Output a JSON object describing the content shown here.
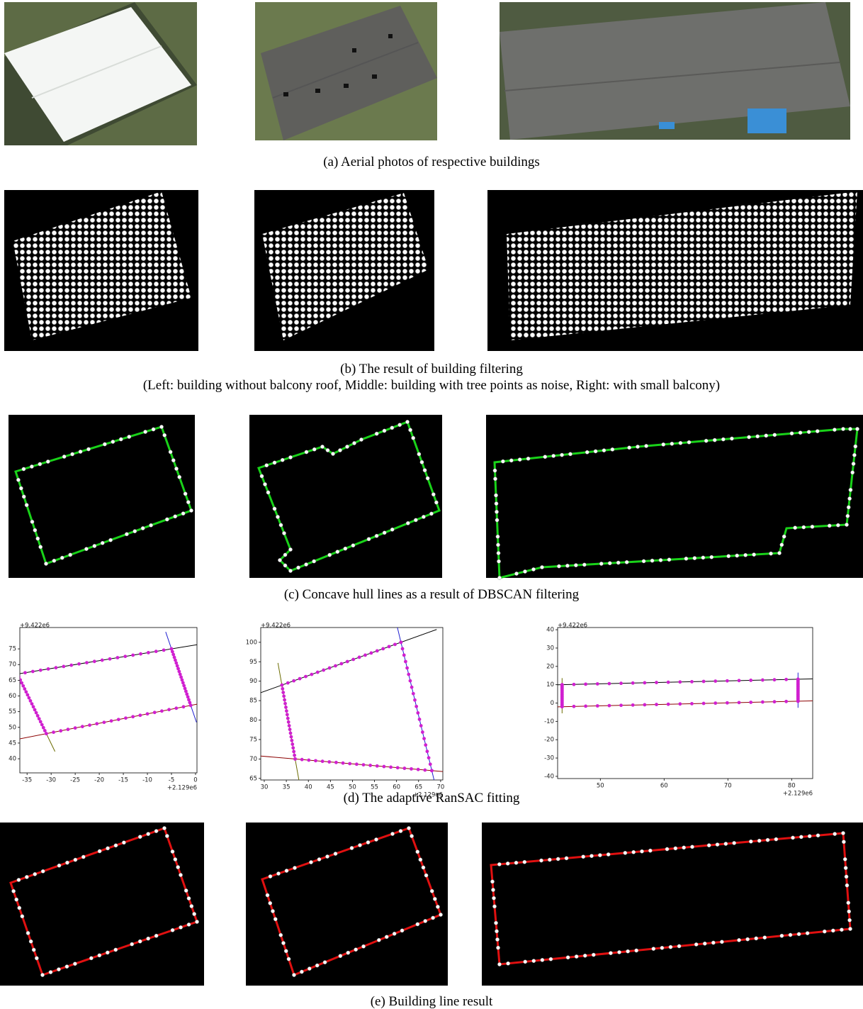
{
  "captions": {
    "a": "(a) Aerial photos of respective buildings",
    "b": "(b) The result of building filtering",
    "b_note": "(Left: building without balcony roof, Middle: building with tree points as noise, Right: with small balcony)",
    "c": "(c) Concave hull lines as a result of DBSCAN filtering",
    "d": "(d) The adaptive RanSAC fitting",
    "e": "(e) Building line result"
  },
  "plots": [
    {
      "y_offset": "+9.422e6",
      "x_offset": "+2.129e6",
      "xlim": [
        -36.5,
        0.3
      ],
      "ylim": [
        35.5,
        81.8
      ],
      "xticks": [
        -35,
        -30,
        -25,
        -20,
        -15,
        -10,
        -5,
        0
      ],
      "yticks": [
        40,
        45,
        50,
        55,
        60,
        65,
        70,
        75
      ]
    },
    {
      "y_offset": "+9.422e6",
      "x_offset": "+2.129e6",
      "xlim": [
        29.2,
        70.5
      ],
      "ylim": [
        64.6,
        103.8
      ],
      "xticks": [
        30,
        35,
        40,
        45,
        50,
        55,
        60,
        65,
        70
      ],
      "yticks": [
        65,
        70,
        75,
        80,
        85,
        90,
        95,
        100
      ]
    },
    {
      "y_offset": "+9.422e6",
      "x_offset": "+2.129e6",
      "xlim": [
        43.3,
        83.3
      ],
      "ylim": [
        -41.2,
        41.2
      ],
      "xticks": [
        50,
        60,
        70,
        80
      ],
      "yticks": [
        -40,
        -30,
        -20,
        -10,
        0,
        10,
        20,
        30,
        40
      ]
    }
  ]
}
